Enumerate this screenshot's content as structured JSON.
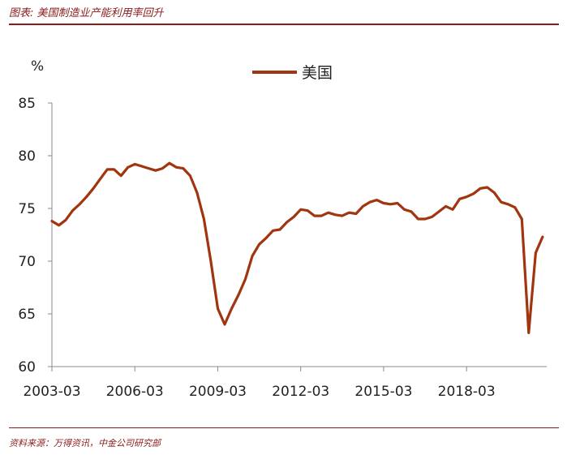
{
  "header": {
    "title": "图表: 美国制造业产能利用率回升"
  },
  "footer": {
    "source": "资料来源：万得资讯，中金公司研究部"
  },
  "chart_data": {
    "type": "line",
    "ylabel": "%",
    "ylim": [
      60,
      85
    ],
    "yticks": [
      60,
      65,
      70,
      75,
      80,
      85
    ],
    "xticks": [
      "2003-03",
      "2006-03",
      "2009-03",
      "2012-03",
      "2015-03",
      "2018-03"
    ],
    "legend_position": "top-center",
    "grid": false,
    "series": [
      {
        "name": "美国",
        "color": "#a0350f",
        "x": [
          2003.0,
          2003.25,
          2003.5,
          2003.75,
          2004.0,
          2004.25,
          2004.5,
          2004.75,
          2005.0,
          2005.25,
          2005.5,
          2005.75,
          2006.0,
          2006.25,
          2006.5,
          2006.75,
          2007.0,
          2007.25,
          2007.5,
          2007.75,
          2008.0,
          2008.25,
          2008.5,
          2008.75,
          2009.0,
          2009.25,
          2009.5,
          2009.75,
          2010.0,
          2010.25,
          2010.5,
          2010.75,
          2011.0,
          2011.25,
          2011.5,
          2011.75,
          2012.0,
          2012.25,
          2012.5,
          2012.75,
          2013.0,
          2013.25,
          2013.5,
          2013.75,
          2014.0,
          2014.25,
          2014.5,
          2014.75,
          2015.0,
          2015.25,
          2015.5,
          2015.75,
          2016.0,
          2016.25,
          2016.5,
          2016.75,
          2017.0,
          2017.25,
          2017.5,
          2017.75,
          2018.0,
          2018.25,
          2018.5,
          2018.75,
          2019.0,
          2019.25,
          2019.5,
          2019.75,
          2020.0,
          2020.25,
          2020.5,
          2020.75
        ],
        "values": [
          73.8,
          73.4,
          73.9,
          74.8,
          75.4,
          76.1,
          76.9,
          77.8,
          78.7,
          78.7,
          78.1,
          78.9,
          79.2,
          79.0,
          78.8,
          78.6,
          78.8,
          79.3,
          78.9,
          78.8,
          78.1,
          76.5,
          74.0,
          70.0,
          65.5,
          64.0,
          65.5,
          66.8,
          68.3,
          70.5,
          71.6,
          72.2,
          72.9,
          73.0,
          73.7,
          74.2,
          74.9,
          74.8,
          74.3,
          74.3,
          74.6,
          74.4,
          74.3,
          74.6,
          74.5,
          75.2,
          75.6,
          75.8,
          75.5,
          75.4,
          75.5,
          74.9,
          74.7,
          74.0,
          74.0,
          74.2,
          74.7,
          75.2,
          74.9,
          75.9,
          76.1,
          76.4,
          76.9,
          77.0,
          76.5,
          75.6,
          75.4,
          75.1,
          74.0,
          63.2,
          70.8,
          72.3
        ]
      }
    ]
  }
}
